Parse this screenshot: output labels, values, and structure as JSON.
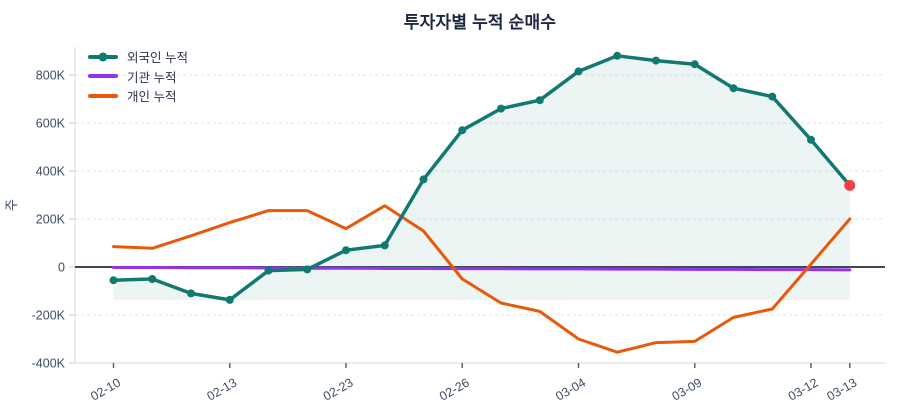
{
  "title": "투자자별 누적 순매수",
  "legend": {
    "items": [
      {
        "label": "외국인 누적",
        "color": "#11796f",
        "has_marker": true
      },
      {
        "label": "기관 누적",
        "color": "#9333ea",
        "has_marker": false
      },
      {
        "label": "개인 누적",
        "color": "#e8590c",
        "has_marker": false
      }
    ]
  },
  "colors": {
    "title_text": "#1c2742",
    "tick_text": "#3f4c66",
    "legend_text": "#2a3347",
    "grid": "#e4e6ec",
    "axis_line": "#e4e6ec",
    "zero_line": "#3f4757",
    "x_tick_mark": "#5a6275",
    "y_tick_mark": "#c9ccd6",
    "background": "#ffffff",
    "latest_point": "#ef4146"
  },
  "chart_data": {
    "type": "line",
    "title": "투자자별 누적 순매수",
    "xlabel": "",
    "ylabel": "주",
    "values_unit": "K (thousands of shares)",
    "x_type": "category",
    "n_points": 20,
    "x_tick_labels": [
      {
        "index": 0,
        "label": "02-10"
      },
      {
        "index": 3,
        "label": "02-13"
      },
      {
        "index": 6,
        "label": "02-23"
      },
      {
        "index": 9,
        "label": "02-26"
      },
      {
        "index": 12,
        "label": "03-04"
      },
      {
        "index": 15,
        "label": "03-09"
      },
      {
        "index": 18,
        "label": "03-12"
      },
      {
        "index": 19,
        "label": "03-13"
      }
    ],
    "y_ticks": [
      {
        "value": 800,
        "label": "800K"
      },
      {
        "value": 600,
        "label": "600K"
      },
      {
        "value": 400,
        "label": "400K"
      },
      {
        "value": 200,
        "label": "200K"
      },
      {
        "value": 0,
        "label": "0"
      },
      {
        "value": -200,
        "label": "-200K"
      },
      {
        "value": -400,
        "label": "-400K"
      }
    ],
    "ylim_k": [
      -400,
      920
    ],
    "grid": "horizontal-dashed",
    "zero_line": true,
    "legend_position": "top-left-inside",
    "series": [
      {
        "name": "외국인 누적",
        "color": "#11796f",
        "line_width": 3.5,
        "marker": "circle",
        "marker_radius": 4,
        "area_fill_to_series_min": true,
        "fill_color": "rgba(17,121,111,0.08)",
        "end_point_color": "#ef4146",
        "values_k": [
          -55,
          -50,
          -110,
          -137,
          -15,
          -10,
          70,
          90,
          365,
          570,
          660,
          695,
          815,
          880,
          860,
          845,
          745,
          710,
          530,
          340
        ]
      },
      {
        "name": "기관 누적",
        "color": "#9333ea",
        "line_width": 3,
        "marker": "none",
        "values_k": [
          -2,
          -2,
          -3,
          -3,
          -4,
          -5,
          -5,
          -6,
          -6,
          -7,
          -7,
          -8,
          -8,
          -9,
          -9,
          -10,
          -10,
          -11,
          -11,
          -12
        ]
      },
      {
        "name": "개인 누적",
        "color": "#e8590c",
        "line_width": 3,
        "marker": "none",
        "values_k": [
          85,
          78,
          130,
          185,
          235,
          235,
          160,
          255,
          150,
          -50,
          -150,
          -185,
          -300,
          -355,
          -315,
          -310,
          -210,
          -175,
          12,
          200
        ]
      }
    ]
  }
}
